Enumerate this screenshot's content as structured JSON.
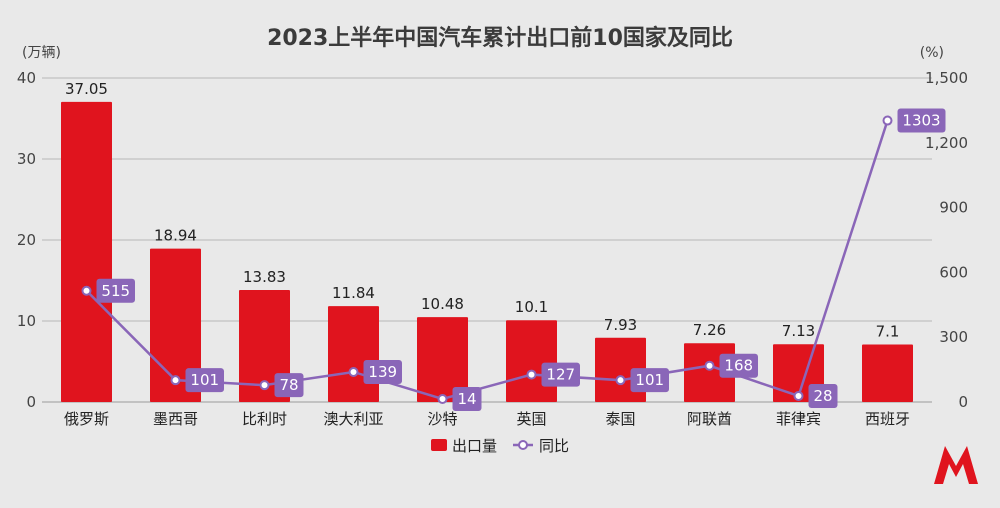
{
  "chart_data": {
    "type": "bar",
    "title": "2023上半年中国汽车累计出口前10国家及同比",
    "ylabel_left": "(万辆)",
    "ylabel_right": "(%)",
    "categories": [
      "俄罗斯",
      "墨西哥",
      "比利时",
      "澳大利亚",
      "沙特",
      "英国",
      "泰国",
      "阿联酋",
      "菲律宾",
      "西班牙"
    ],
    "ylim_left": [
      0,
      40
    ],
    "yticks_left": [
      "0",
      "10",
      "20",
      "30",
      "40"
    ],
    "ylim_right": [
      0,
      1500
    ],
    "yticks_right": [
      "0",
      "300",
      "600",
      "900",
      "1,200",
      "1,500"
    ],
    "grid": true,
    "legend_position": "bottom",
    "series": [
      {
        "name": "出口量",
        "kind": "bar",
        "axis": "left",
        "color": "#e0141e",
        "values": [
          37.05,
          18.94,
          13.83,
          11.84,
          10.48,
          10.1,
          7.93,
          7.26,
          7.13,
          7.1
        ],
        "labels": [
          "37.05",
          "18.94",
          "13.83",
          "11.84",
          "10.48",
          "10.1",
          "7.93",
          "7.26",
          "7.13",
          "7.1"
        ]
      },
      {
        "name": "同比",
        "kind": "line",
        "axis": "right",
        "color": "#8a66b8",
        "values": [
          515,
          101,
          78,
          139,
          14,
          127,
          101,
          168,
          28,
          1303
        ],
        "labels": [
          "515",
          "101",
          "78",
          "139",
          "14",
          "127",
          "101",
          "168",
          "28",
          "1303"
        ]
      }
    ]
  },
  "logo": {
    "name": "brand-logo",
    "colors": [
      "#e0141e",
      "#b0101a"
    ]
  }
}
